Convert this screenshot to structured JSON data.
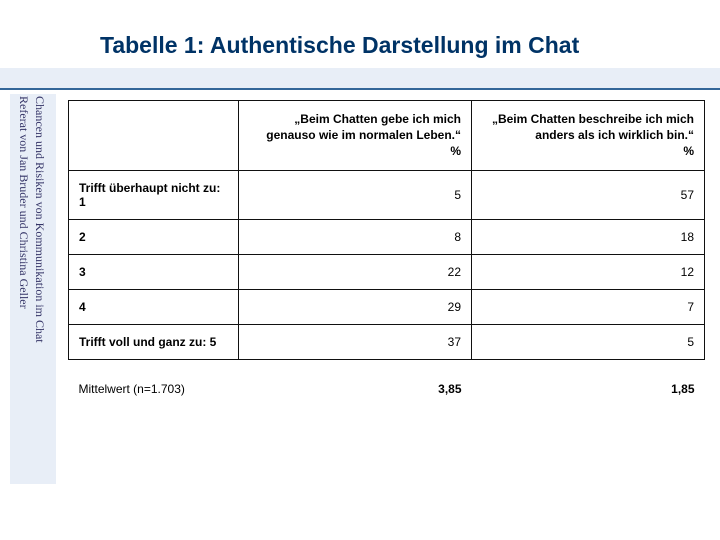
{
  "title": "Tabelle 1: Authentische Darstellung im Chat",
  "sidebar": {
    "line1": "Chancen und Risiken von Kommunikation im Chat",
    "line2": "Referat von Jan Bruder und Christina Geller"
  },
  "table": {
    "header": {
      "col1": "",
      "col2": "„Beim Chatten gebe ich mich genauso wie im normalen Leben.“\n%",
      "col3": "„Beim Chatten beschreibe ich mich anders als ich wirklich bin.“\n%"
    },
    "rows": [
      {
        "label": "Trifft überhaupt nicht zu: 1",
        "bold": true,
        "v1": "5",
        "v2": "57"
      },
      {
        "label": "2",
        "bold": true,
        "v1": "8",
        "v2": "18"
      },
      {
        "label": "3",
        "bold": true,
        "v1": "22",
        "v2": "12"
      },
      {
        "label": "4",
        "bold": true,
        "v1": "29",
        "v2": "7"
      },
      {
        "label": "Trifft voll und ganz zu: 5",
        "bold": true,
        "v1": "37",
        "v2": "5"
      }
    ],
    "mean": {
      "label": "Mittelwert (n=1.703)",
      "v1": "3,85",
      "v2": "1,85"
    }
  },
  "colors": {
    "title": "#003366",
    "band_bg": "#e8eef7",
    "band_border": "#336699",
    "sidebar_bg": "#e8eef7",
    "sidetext": "#333366",
    "table_border": "#111111",
    "page_bg": "#ffffff"
  },
  "typography": {
    "title_fontsize_pt": 17,
    "table_fontsize_pt": 9,
    "sidetext_fontsize_pt": 9,
    "sidetext_family": "Times New Roman"
  }
}
